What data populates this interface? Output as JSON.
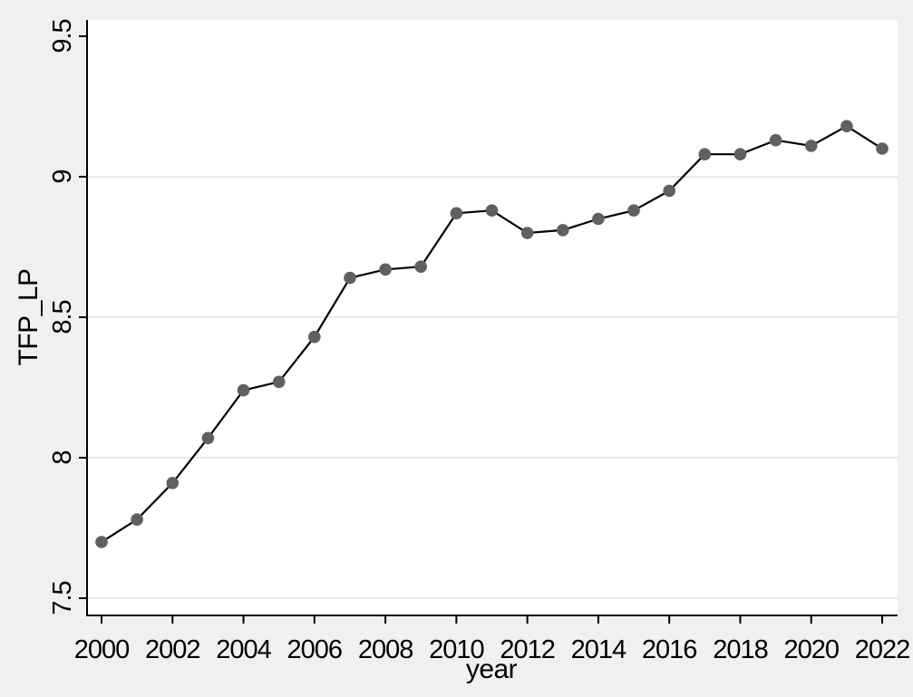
{
  "window": {
    "background_color": "#f0f0f0"
  },
  "chart_data": {
    "type": "line",
    "title": "",
    "xlabel": "year",
    "ylabel": "TFP_LP",
    "x": [
      2000,
      2001,
      2002,
      2003,
      2004,
      2005,
      2006,
      2007,
      2008,
      2009,
      2010,
      2011,
      2012,
      2013,
      2014,
      2015,
      2016,
      2017,
      2018,
      2019,
      2020,
      2021,
      2022
    ],
    "values": [
      7.7,
      7.78,
      7.91,
      8.07,
      8.24,
      8.27,
      8.43,
      8.64,
      8.67,
      8.68,
      8.87,
      8.88,
      8.8,
      8.81,
      8.85,
      8.88,
      8.95,
      9.08,
      9.08,
      9.13,
      9.11,
      9.18,
      9.1
    ],
    "xticks": [
      {
        "v": 2000,
        "label": "2000"
      },
      {
        "v": 2002,
        "label": "2002"
      },
      {
        "v": 2004,
        "label": "2004"
      },
      {
        "v": 2006,
        "label": "2006"
      },
      {
        "v": 2008,
        "label": "2008"
      },
      {
        "v": 2010,
        "label": "2010"
      },
      {
        "v": 2012,
        "label": "2012"
      },
      {
        "v": 2014,
        "label": "2014"
      },
      {
        "v": 2016,
        "label": "2016"
      },
      {
        "v": 2018,
        "label": "2018"
      },
      {
        "v": 2020,
        "label": "2020"
      },
      {
        "v": 2022,
        "label": "2022"
      }
    ],
    "yticks": [
      {
        "v": 7.5,
        "label": "7.5"
      },
      {
        "v": 8,
        "label": "8"
      },
      {
        "v": 8.5,
        "label": "8.5"
      },
      {
        "v": 9,
        "label": "9"
      },
      {
        "v": 9.5,
        "label": "9.5"
      }
    ],
    "grid_values": [
      7.5,
      8,
      8.5,
      9
    ],
    "grid": true,
    "legend": "none",
    "marker": "circle",
    "xlim": [
      1999.6,
      2022.4
    ],
    "ylim": [
      7.44,
      9.56
    ],
    "colors": {
      "line": "#000000",
      "marker": "#606060",
      "grid": "#e2e2e2",
      "axis": "#000000",
      "plot_background": "#ffffff",
      "outer_background": "#f0f0f0",
      "text": "#000000"
    }
  }
}
